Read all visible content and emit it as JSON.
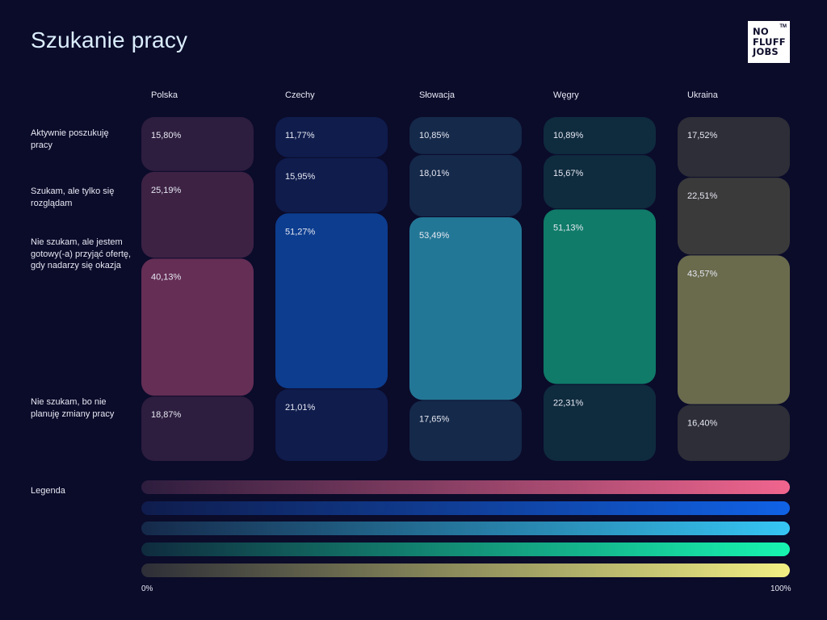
{
  "title": "Szukanie pracy",
  "logo": {
    "lines": [
      "NO",
      "FLUFF",
      "JOBS"
    ],
    "tm": "TM"
  },
  "chart_data": {
    "type": "bar",
    "stacked": true,
    "categories": [
      "Polska",
      "Czechy",
      "Słowacja",
      "Węgry",
      "Ukraina"
    ],
    "series": [
      {
        "name": "Aktywnie poszukuję pracy",
        "values": [
          15.8,
          11.77,
          10.85,
          10.89,
          17.52
        ],
        "labels": [
          "15,80%",
          "11,77%",
          "10,85%",
          "10,89%",
          "17,52%"
        ]
      },
      {
        "name": "Szukam, ale tylko się rozglądam",
        "values": [
          25.19,
          15.95,
          18.01,
          15.67,
          22.51
        ],
        "labels": [
          "25,19%",
          "15,95%",
          "18,01%",
          "15,67%",
          "22,51%"
        ]
      },
      {
        "name": "Nie szukam, ale jestem gotowy(-a) przyjąć ofertę, gdy nadarzy się okazja",
        "values": [
          40.13,
          51.27,
          53.49,
          51.13,
          43.57
        ],
        "labels": [
          "40,13%",
          "51,27%",
          "53,49%",
          "51,13%",
          "43,57%"
        ]
      },
      {
        "name": "Nie szukam, bo nie planuję zmiany pracy",
        "values": [
          18.87,
          21.01,
          17.65,
          22.31,
          16.4
        ],
        "labels": [
          "18,87%",
          "21,01%",
          "17,65%",
          "22,31%",
          "16,40%"
        ]
      }
    ],
    "colors": {
      "Polska": [
        "#2d1d3e",
        "#3d2244",
        "#652e55",
        "#2d1d3e"
      ],
      "Czechy": [
        "#0f1c4c",
        "#0f1c4c",
        "#0c3d8f",
        "#0f1c4c"
      ],
      "Słowacja": [
        "#15294a",
        "#15294a",
        "#237796",
        "#15294a"
      ],
      "Węgry": [
        "#0f2b3e",
        "#0f2b3e",
        "#0f7b68",
        "#0f2b3e"
      ],
      "Ukraina": [
        "#2d2e37",
        "#3b3a3b",
        "#6a6b4d",
        "#2d2e37"
      ]
    }
  },
  "legend": {
    "label": "Legenda",
    "min_label": "0%",
    "max_label": "100%",
    "gradients": [
      [
        "#2d1d3e",
        "#f0658e"
      ],
      [
        "#0f1c4c",
        "#1062e6"
      ],
      [
        "#15294a",
        "#36c6f4"
      ],
      [
        "#0f2b3e",
        "#17f5b1"
      ],
      [
        "#2d2e37",
        "#f1ef83"
      ]
    ]
  }
}
